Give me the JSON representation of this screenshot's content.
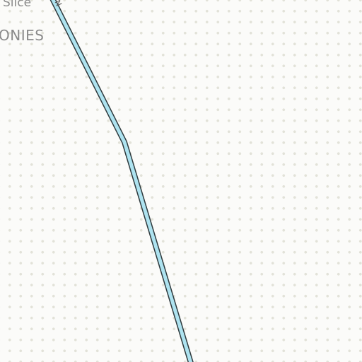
{
  "map": {
    "labels": {
      "place_top": "Slice",
      "place_mid": "ONIES",
      "road": "N"
    },
    "colors": {
      "background": "#fbfbf9",
      "dot": "#e2e2d8",
      "road_fill": "#aee3f0",
      "road_casing": "#2f3a3d",
      "label": "#8a8a8a"
    }
  }
}
